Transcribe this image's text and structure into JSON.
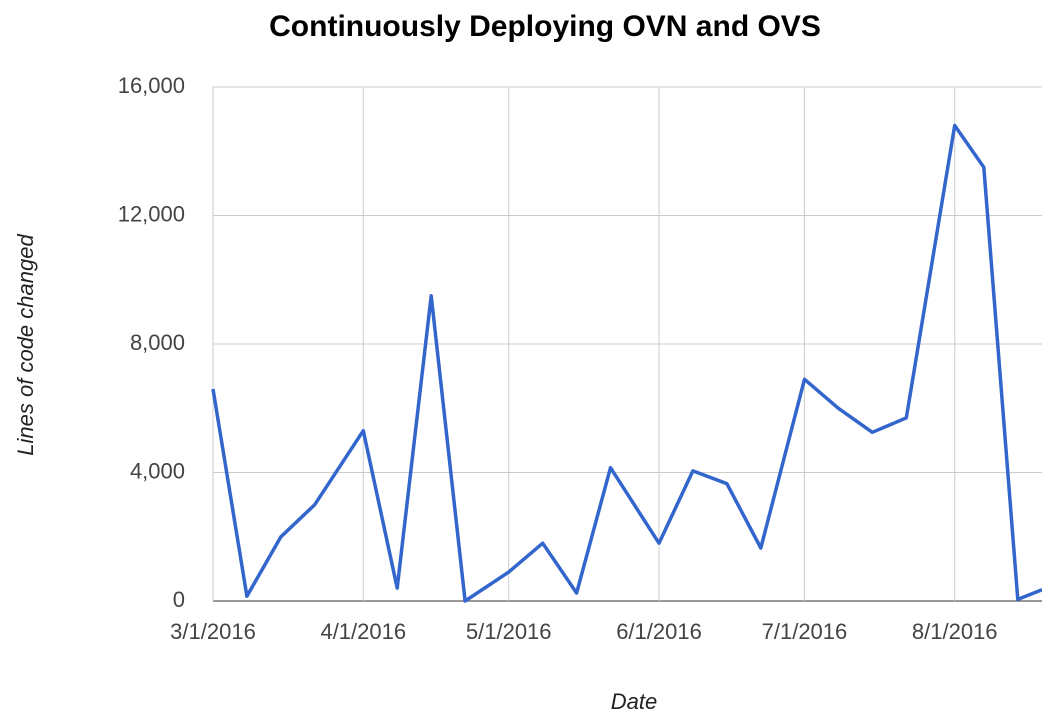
{
  "chart_data": {
    "type": "line",
    "title": "Continuously Deploying OVN and OVS",
    "x_label": "Date",
    "y_label": "Lines of code changed",
    "x": [
      "2016-03-01",
      "2016-03-08",
      "2016-03-15",
      "2016-03-22",
      "2016-04-01",
      "2016-04-08",
      "2016-04-15",
      "2016-04-22",
      "2016-05-01",
      "2016-05-08",
      "2016-05-15",
      "2016-05-22",
      "2016-06-01",
      "2016-06-08",
      "2016-06-15",
      "2016-06-22",
      "2016-07-01",
      "2016-07-08",
      "2016-07-15",
      "2016-07-22",
      "2016-08-01",
      "2016-08-07",
      "2016-08-14",
      "2016-08-19"
    ],
    "series": [
      {
        "name": "Lines of code changed",
        "color": "#3366cc",
        "values": [
          6600,
          150,
          2000,
          3000,
          5300,
          400,
          9500,
          0,
          900,
          1800,
          250,
          4150,
          1800,
          4050,
          3650,
          1650,
          6900,
          6000,
          5250,
          5700,
          14800,
          13500,
          50,
          350
        ]
      }
    ],
    "xlim": [
      "2016-03-01",
      "2016-08-19"
    ],
    "xticks": [
      {
        "value": "2016-03-01",
        "label": "3/1/2016"
      },
      {
        "value": "2016-04-01",
        "label": "4/1/2016"
      },
      {
        "value": "2016-05-01",
        "label": "5/1/2016"
      },
      {
        "value": "2016-06-01",
        "label": "6/1/2016"
      },
      {
        "value": "2016-07-01",
        "label": "7/1/2016"
      },
      {
        "value": "2016-08-01",
        "label": "8/1/2016"
      }
    ],
    "ylim": [
      0,
      16000
    ],
    "yticks": [
      0,
      {
        "value": 4000,
        "label": "4,000"
      },
      {
        "value": 8000,
        "label": "8,000"
      },
      {
        "value": 12000,
        "label": "12,000"
      },
      {
        "value": 16000,
        "label": "16,000"
      }
    ],
    "grid": true
  }
}
